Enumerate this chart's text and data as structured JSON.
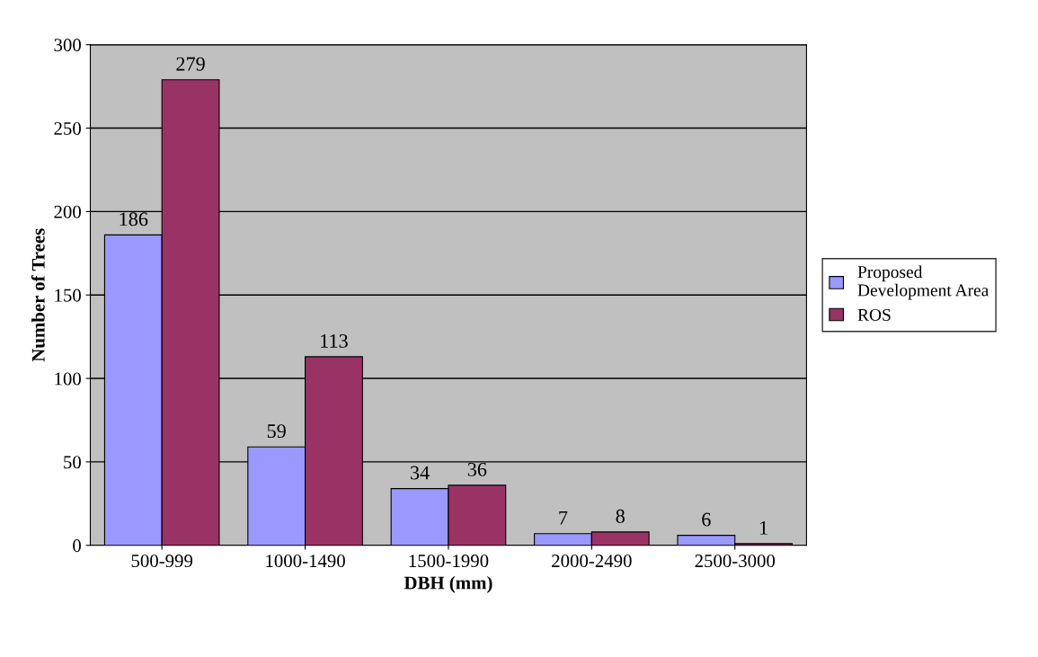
{
  "chart_data": {
    "type": "bar",
    "xlabel": "DBH (mm)",
    "ylabel": "Number of Trees",
    "categories": [
      "500-999",
      "1000-1490",
      "1500-1990",
      "2000-2490",
      "2500-3000"
    ],
    "series": [
      {
        "name": "Proposed Development Area",
        "color": "#9999ff",
        "values": [
          186,
          59,
          34,
          7,
          6
        ]
      },
      {
        "name": "ROS",
        "color": "#993366",
        "values": [
          279,
          113,
          36,
          8,
          1
        ]
      }
    ],
    "ylim": [
      0,
      300
    ],
    "yticks": [
      0,
      50,
      100,
      150,
      200,
      250,
      300
    ],
    "grid": "y",
    "legend": "right",
    "data_labels": true
  }
}
